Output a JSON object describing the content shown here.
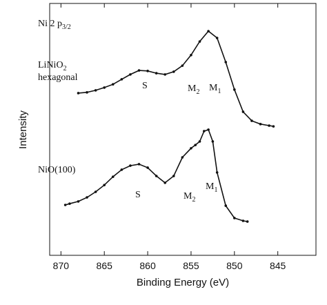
{
  "chart_data": {
    "type": "line",
    "xlabel": "Binding Energy (eV)",
    "ylabel": "Intensity",
    "xlim": [
      871.3,
      840.6
    ],
    "xticks": [
      870,
      865,
      860,
      855,
      850,
      845
    ],
    "ylim": [
      0,
      100
    ],
    "series": [
      {
        "color": "#111111",
        "x": [
          868,
          867,
          866,
          865,
          864,
          863,
          862,
          861,
          860,
          859,
          858,
          857,
          856,
          855,
          854,
          853,
          852,
          851,
          850,
          849,
          848,
          847,
          846,
          845.5
        ],
        "values": [
          64.4,
          64.7,
          65.5,
          66.6,
          67.9,
          69.9,
          71.8,
          73.4,
          73.2,
          72.3,
          71.8,
          72.9,
          75.3,
          79.5,
          84.9,
          89.0,
          86.3,
          76.7,
          65.8,
          57.0,
          53.4,
          52.1,
          51.5,
          51.2
        ]
      },
      {
        "color": "#111111",
        "x": [
          869.5,
          869,
          868,
          867,
          866,
          865,
          864,
          863,
          862,
          861,
          860,
          859,
          858,
          857,
          856,
          855,
          854.5,
          854,
          853.5,
          853,
          852.5,
          852,
          851,
          850,
          849,
          848.5
        ],
        "values": [
          20.0,
          20.5,
          21.4,
          23.0,
          25.2,
          27.9,
          31.2,
          34.0,
          35.6,
          36.2,
          34.8,
          31.5,
          28.8,
          31.5,
          38.9,
          42.5,
          43.8,
          45.2,
          49.3,
          49.9,
          45.2,
          32.9,
          19.7,
          14.8,
          13.7,
          13.4
        ]
      }
    ],
    "annotations": [
      {
        "text": "Ni 2 p",
        "sub": "3/2"
      },
      {
        "text": "LiNiO",
        "sub": "2"
      },
      {
        "text": "hexagonal"
      },
      {
        "text": "NiO(100)"
      },
      {
        "text": "S"
      },
      {
        "text": "M",
        "sub": "2"
      },
      {
        "text": "M",
        "sub": "1"
      },
      {
        "text": "S"
      },
      {
        "text": "M",
        "sub": "2"
      },
      {
        "text": "M",
        "sub": "1"
      }
    ]
  }
}
